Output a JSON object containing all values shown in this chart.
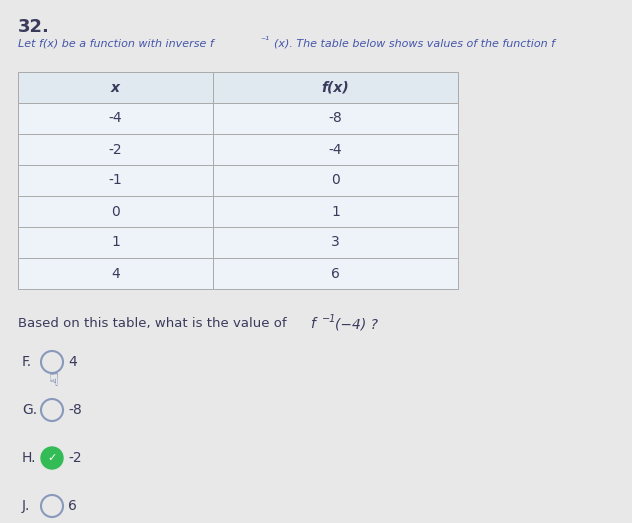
{
  "question_number": "32.",
  "table_x": [
    "-4",
    "-2",
    "-1",
    "0",
    "1",
    "4"
  ],
  "table_fx": [
    "-8",
    "-4",
    "0",
    "1",
    "3",
    "6"
  ],
  "col_headers": [
    "x",
    "f(x)"
  ],
  "choices": [
    "4",
    "-8",
    "-2",
    "6"
  ],
  "choice_labels": [
    "F.",
    "G.",
    "H.",
    "J."
  ],
  "correct_index": 2,
  "finger_index": 0,
  "bg_color": "#e8e8e8",
  "table_bg_header": "#e0e8f0",
  "table_bg_data": "#edf3f8",
  "table_border_color": "#aaaaaa",
  "text_color": "#3a3a5c",
  "header_text_color": "#4455aa",
  "circle_color": "#8899bb",
  "correct_circle_color": "#33bb55",
  "table_fontsize": 10,
  "body_fontsize": 9.5
}
